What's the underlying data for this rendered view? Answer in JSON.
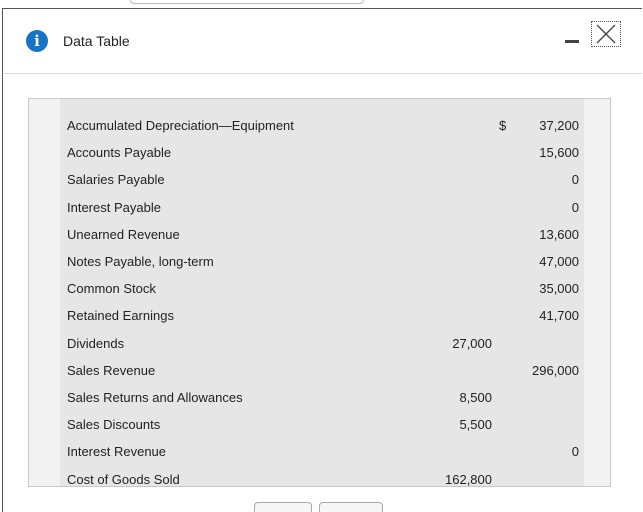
{
  "header": {
    "title": "Data Table"
  },
  "table": {
    "rows": [
      {
        "account": "Accumulated Depreciation—Equipment",
        "currency": "$",
        "credit": "37,200"
      },
      {
        "account": "Accounts Payable",
        "credit": "15,600"
      },
      {
        "account": "Salaries Payable",
        "credit": "0"
      },
      {
        "account": "Interest Payable",
        "credit": "0"
      },
      {
        "account": "Unearned Revenue",
        "credit": "13,600"
      },
      {
        "account": "Notes Payable, long-term",
        "credit": "47,000"
      },
      {
        "account": "Common Stock",
        "credit": "35,000"
      },
      {
        "account": "Retained Earnings",
        "credit": "41,700"
      },
      {
        "account": "Dividends",
        "debit": "27,000"
      },
      {
        "account": "Sales Revenue",
        "credit": "296,000"
      },
      {
        "account": "Sales Returns and Allowances",
        "debit": "8,500"
      },
      {
        "account": "Sales Discounts",
        "debit": "5,500"
      },
      {
        "account": "Interest Revenue",
        "credit": "0"
      },
      {
        "account": "Cost of Goods Sold",
        "debit": "162,800"
      }
    ]
  }
}
